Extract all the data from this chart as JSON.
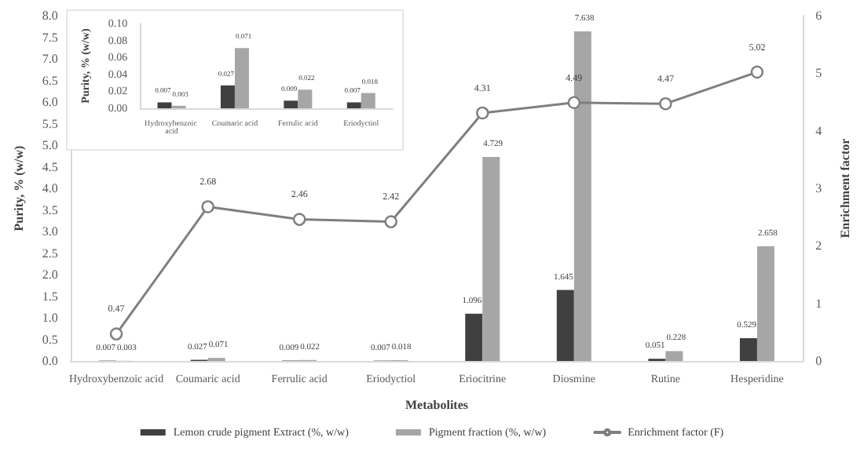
{
  "chart_data": [
    {
      "type": "bar",
      "xlabel": "Metabolites",
      "ylabel": "Purity, % (w/w)",
      "y2label": "Enrichment factor",
      "categories": [
        "Hydroxybenzoic acid",
        "Coumaric acid",
        "Ferrulic acid",
        "Eriodyctiol",
        "Eriocitrine",
        "Diosmine",
        "Rutine",
        "Hesperidine"
      ],
      "series": [
        {
          "name": "Lemon crude pigment Extract (%, w/w)",
          "color": "#404040",
          "values": [
            0.007,
            0.027,
            0.009,
            0.007,
            1.096,
            1.645,
            0.051,
            0.529
          ]
        },
        {
          "name": "Pigment fraction (%, w/w)",
          "color": "#a6a6a6",
          "values": [
            0.003,
            0.071,
            0.022,
            0.018,
            4.729,
            7.638,
            0.228,
            2.658
          ]
        },
        {
          "name": "Enrichment factor (F)",
          "type": "line",
          "axis": "y2",
          "color": "#7f7f7f",
          "marker": "circle",
          "values": [
            0.47,
            2.68,
            2.46,
            2.42,
            4.31,
            4.49,
            4.47,
            5.02
          ]
        }
      ],
      "ylim": [
        0,
        8
      ],
      "yticks": [
        {
          "value": 0,
          "label": "0.0"
        },
        {
          "value": 0.5,
          "label": "0.5"
        },
        {
          "value": 1,
          "label": "1.0"
        },
        {
          "value": 1.5,
          "label": "1.5"
        },
        {
          "value": 2,
          "label": "2.0"
        },
        {
          "value": 2.5,
          "label": "2.5"
        },
        {
          "value": 3,
          "label": "3.0"
        },
        {
          "value": 3.5,
          "label": "3.5"
        },
        {
          "value": 4,
          "label": "4.0"
        },
        {
          "value": 4.5,
          "label": "4.5"
        },
        {
          "value": 5,
          "label": "5.0"
        },
        {
          "value": 5.5,
          "label": "5.5"
        },
        {
          "value": 6,
          "label": "6.0"
        },
        {
          "value": 6.5,
          "label": "6.5"
        },
        {
          "value": 7,
          "label": "7.0"
        },
        {
          "value": 7.5,
          "label": "7.5"
        },
        {
          "value": 8,
          "label": "8.0"
        }
      ],
      "y2lim": [
        0,
        6
      ],
      "y2ticks": [
        0,
        1,
        2,
        3,
        4,
        5,
        6
      ],
      "data_labels": true,
      "legend": "bottom",
      "grid": false
    },
    {
      "type": "bar",
      "ylabel": "Purity, % (w/w)",
      "categories": [
        "Hydroxybenzoic acid",
        "Coumaric acid",
        "Ferrulic acid",
        "Eriodyctiol"
      ],
      "series": [
        {
          "color": "#404040",
          "values": [
            0.007,
            0.027,
            0.009,
            0.007
          ]
        },
        {
          "color": "#a6a6a6",
          "values": [
            0.003,
            0.071,
            0.022,
            0.018
          ]
        }
      ],
      "ylim": [
        0,
        0.1
      ],
      "yticks": [
        {
          "value": 0,
          "label": "0.00"
        },
        {
          "value": 0.02,
          "label": "0.02"
        },
        {
          "value": 0.04,
          "label": "0.04"
        },
        {
          "value": 0.06,
          "label": "0.06"
        },
        {
          "value": 0.08,
          "label": "0.08"
        },
        {
          "value": 0.1,
          "label": "0.10"
        }
      ],
      "data_labels": true,
      "legend": false,
      "grid": false
    }
  ]
}
